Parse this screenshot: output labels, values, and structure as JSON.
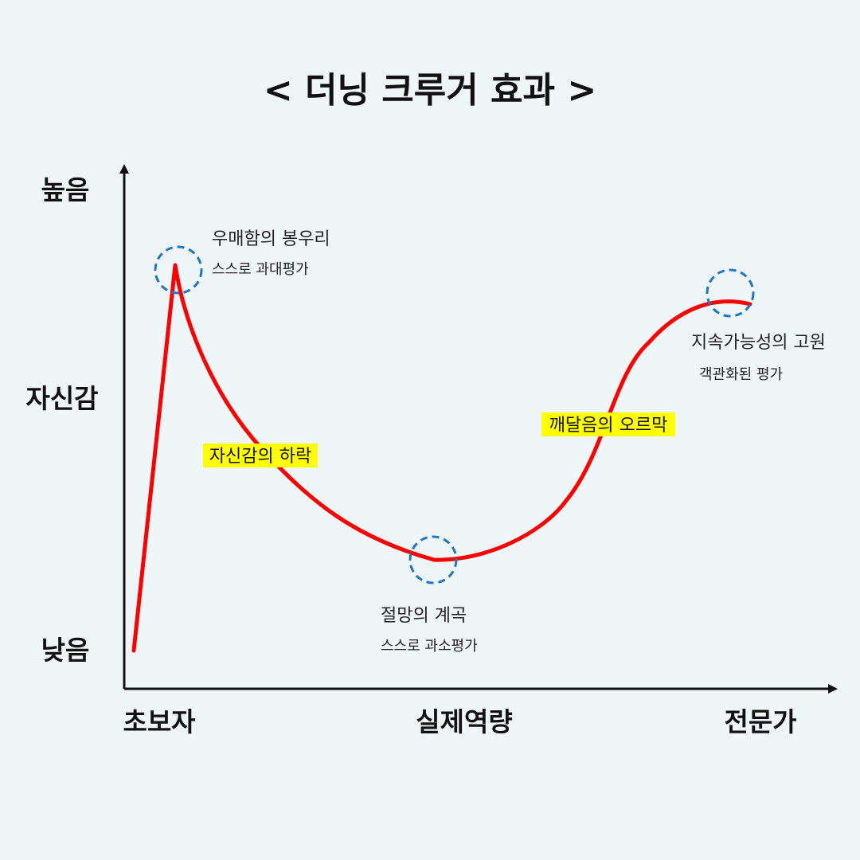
{
  "title": "< 더닝 크루거 효과 >",
  "y_axis": {
    "high": "높음",
    "label": "자신감",
    "low": "낮음"
  },
  "x_axis": {
    "start": "초보자",
    "label": "실제역량",
    "end": "전문가"
  },
  "points": {
    "peak": {
      "title": "우매함의 봉우리",
      "sub": "스스로 과대평가"
    },
    "valley": {
      "title": "절망의 계곡",
      "sub": "스스로 과소평가"
    },
    "plateau": {
      "title": "지속가능성의 고원",
      "sub": "객관화된 평가"
    }
  },
  "phases": {
    "decline": "자신감의 하락",
    "rise": "깨달음의 오르막"
  },
  "colors": {
    "background": "#eef6f8",
    "curve": "#ff0000",
    "marker_circle": "#1f77c4",
    "highlight": "#ffff00",
    "axis": "#111111"
  }
}
